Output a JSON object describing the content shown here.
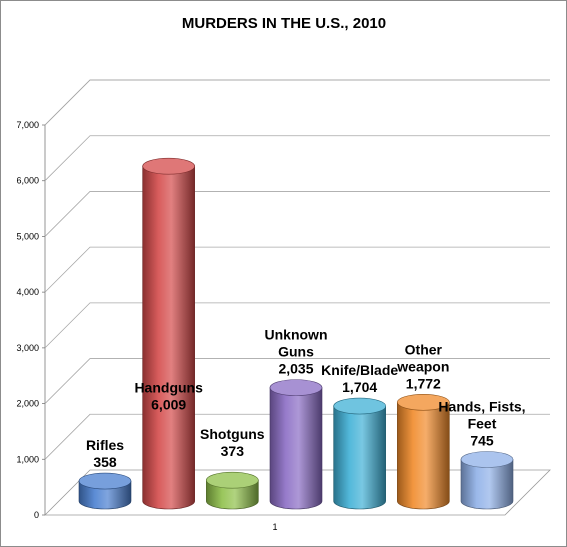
{
  "chart_data": {
    "type": "bar",
    "title": "MURDERS IN THE U.S., 2010",
    "xlabel": "",
    "ylabel": "",
    "x_tick_labels": [
      "1"
    ],
    "ylim": [
      0,
      7000
    ],
    "y_ticks": [
      0,
      1000,
      2000,
      3000,
      4000,
      5000,
      6000,
      7000
    ],
    "y_tick_labels": [
      "0",
      "1,000",
      "2,000",
      "3,000",
      "4,000",
      "5,000",
      "6,000",
      "7,000"
    ],
    "grid": true,
    "legend": "none",
    "style": "3d-cylinder",
    "series": [
      {
        "name": "Rifles",
        "label_lines": [
          "Rifles"
        ],
        "value": 358,
        "value_label": "358",
        "color": "#4a7fd0"
      },
      {
        "name": "Handguns",
        "label_lines": [
          "Handguns"
        ],
        "value": 6009,
        "value_label": "6,009",
        "color": "#d44a4a"
      },
      {
        "name": "Shotguns",
        "label_lines": [
          "Shotguns"
        ],
        "value": 373,
        "value_label": "373",
        "color": "#8fc04a"
      },
      {
        "name": "Unknown Guns",
        "label_lines": [
          "Unknown",
          "Guns"
        ],
        "value": 2035,
        "value_label": "2,035",
        "color": "#8a6cc4"
      },
      {
        "name": "Knife/Blade",
        "label_lines": [
          "Knife/Blade"
        ],
        "value": 1704,
        "value_label": "1,704",
        "color": "#3fb0d6"
      },
      {
        "name": "Other weapon",
        "label_lines": [
          "Other",
          "weapon"
        ],
        "value": 1772,
        "value_label": "1,772",
        "color": "#f08a2a"
      },
      {
        "name": "Hands, Fists, Feet",
        "label_lines": [
          "Hands, Fists,",
          "Feet"
        ],
        "value": 745,
        "value_label": "745",
        "color": "#8fb0e8"
      }
    ]
  }
}
